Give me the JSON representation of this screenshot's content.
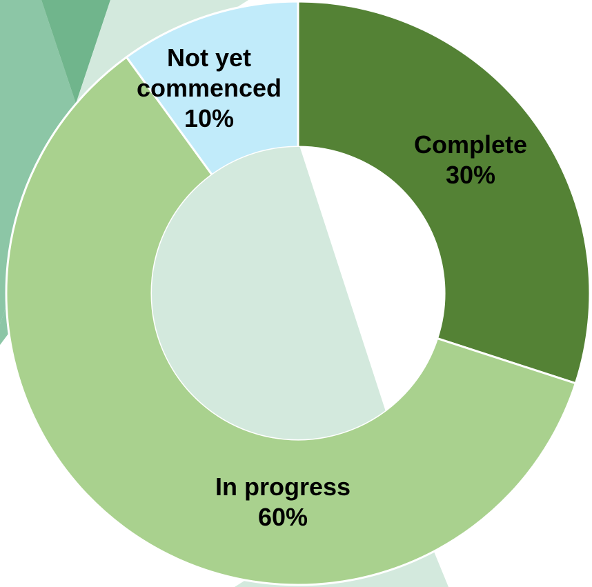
{
  "chart_data": {
    "type": "donut",
    "categories": [
      "Complete",
      "In progress",
      "Not yet commenced"
    ],
    "values": [
      30,
      60,
      10
    ],
    "value_labels": [
      "30%",
      "60%",
      "10%"
    ],
    "colors": [
      "#548235",
      "#a9d18e",
      "#c1ebfa"
    ]
  }
}
